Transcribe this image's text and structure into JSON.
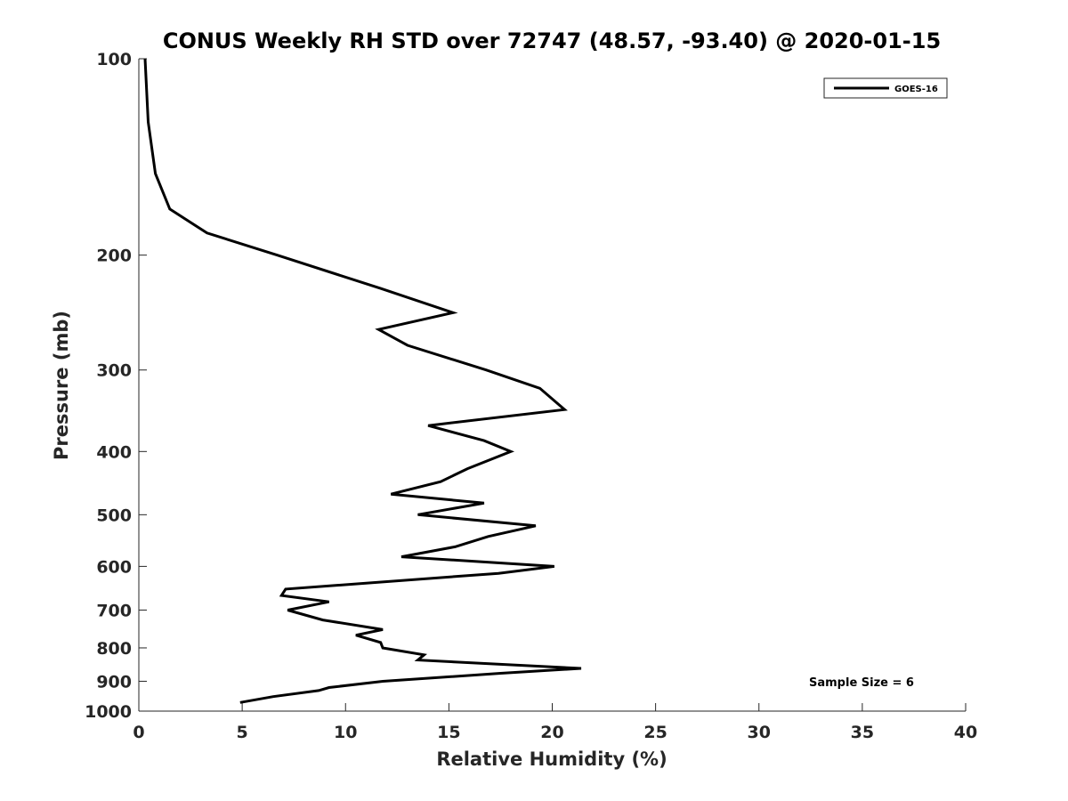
{
  "chart_data": {
    "type": "line",
    "title": "CONUS Weekly RH STD over 72747 (48.57, -93.40) @ 2020-01-15",
    "xlabel": "Relative Humidity (%)",
    "ylabel": "Pressure (mb)",
    "xlim": [
      0,
      40
    ],
    "ylim": [
      100,
      1000
    ],
    "y_scale": "log",
    "y_reversed": true,
    "x_ticks": [
      0,
      5,
      10,
      15,
      20,
      25,
      30,
      35,
      40
    ],
    "y_ticks": [
      100,
      200,
      300,
      400,
      500,
      600,
      700,
      800,
      900,
      1000
    ],
    "grid": false,
    "legend": {
      "position": "top-right",
      "entries": [
        "GOES-16"
      ]
    },
    "series": [
      {
        "name": "GOES-16",
        "color": "#000000",
        "points": [
          [
            0.3,
            100
          ],
          [
            0.45,
            125
          ],
          [
            0.8,
            150
          ],
          [
            1.5,
            170
          ],
          [
            3.3,
            185
          ],
          [
            6.7,
            200
          ],
          [
            11.7,
            225
          ],
          [
            15.2,
            245
          ],
          [
            11.6,
            260
          ],
          [
            13.0,
            275
          ],
          [
            16.8,
            300
          ],
          [
            19.4,
            320
          ],
          [
            20.6,
            345
          ],
          [
            14.0,
            365
          ],
          [
            16.7,
            385
          ],
          [
            18.0,
            400
          ],
          [
            15.9,
            425
          ],
          [
            14.6,
            445
          ],
          [
            12.2,
            465
          ],
          [
            16.7,
            480
          ],
          [
            13.5,
            500
          ],
          [
            19.2,
            520
          ],
          [
            16.9,
            540
          ],
          [
            15.3,
            560
          ],
          [
            12.7,
            580
          ],
          [
            20.1,
            600
          ],
          [
            17.4,
            615
          ],
          [
            7.1,
            650
          ],
          [
            6.9,
            665
          ],
          [
            9.2,
            680
          ],
          [
            7.2,
            700
          ],
          [
            8.9,
            725
          ],
          [
            11.8,
            750
          ],
          [
            10.5,
            765
          ],
          [
            11.7,
            785
          ],
          [
            11.8,
            800
          ],
          [
            13.8,
            820
          ],
          [
            13.5,
            835
          ],
          [
            21.4,
            860
          ],
          [
            17.5,
            875
          ],
          [
            11.8,
            900
          ],
          [
            9.2,
            920
          ],
          [
            8.7,
            930
          ],
          [
            6.5,
            950
          ],
          [
            4.9,
            970
          ]
        ]
      }
    ],
    "annotations": [
      {
        "text": "Sample Size = 6"
      }
    ]
  }
}
